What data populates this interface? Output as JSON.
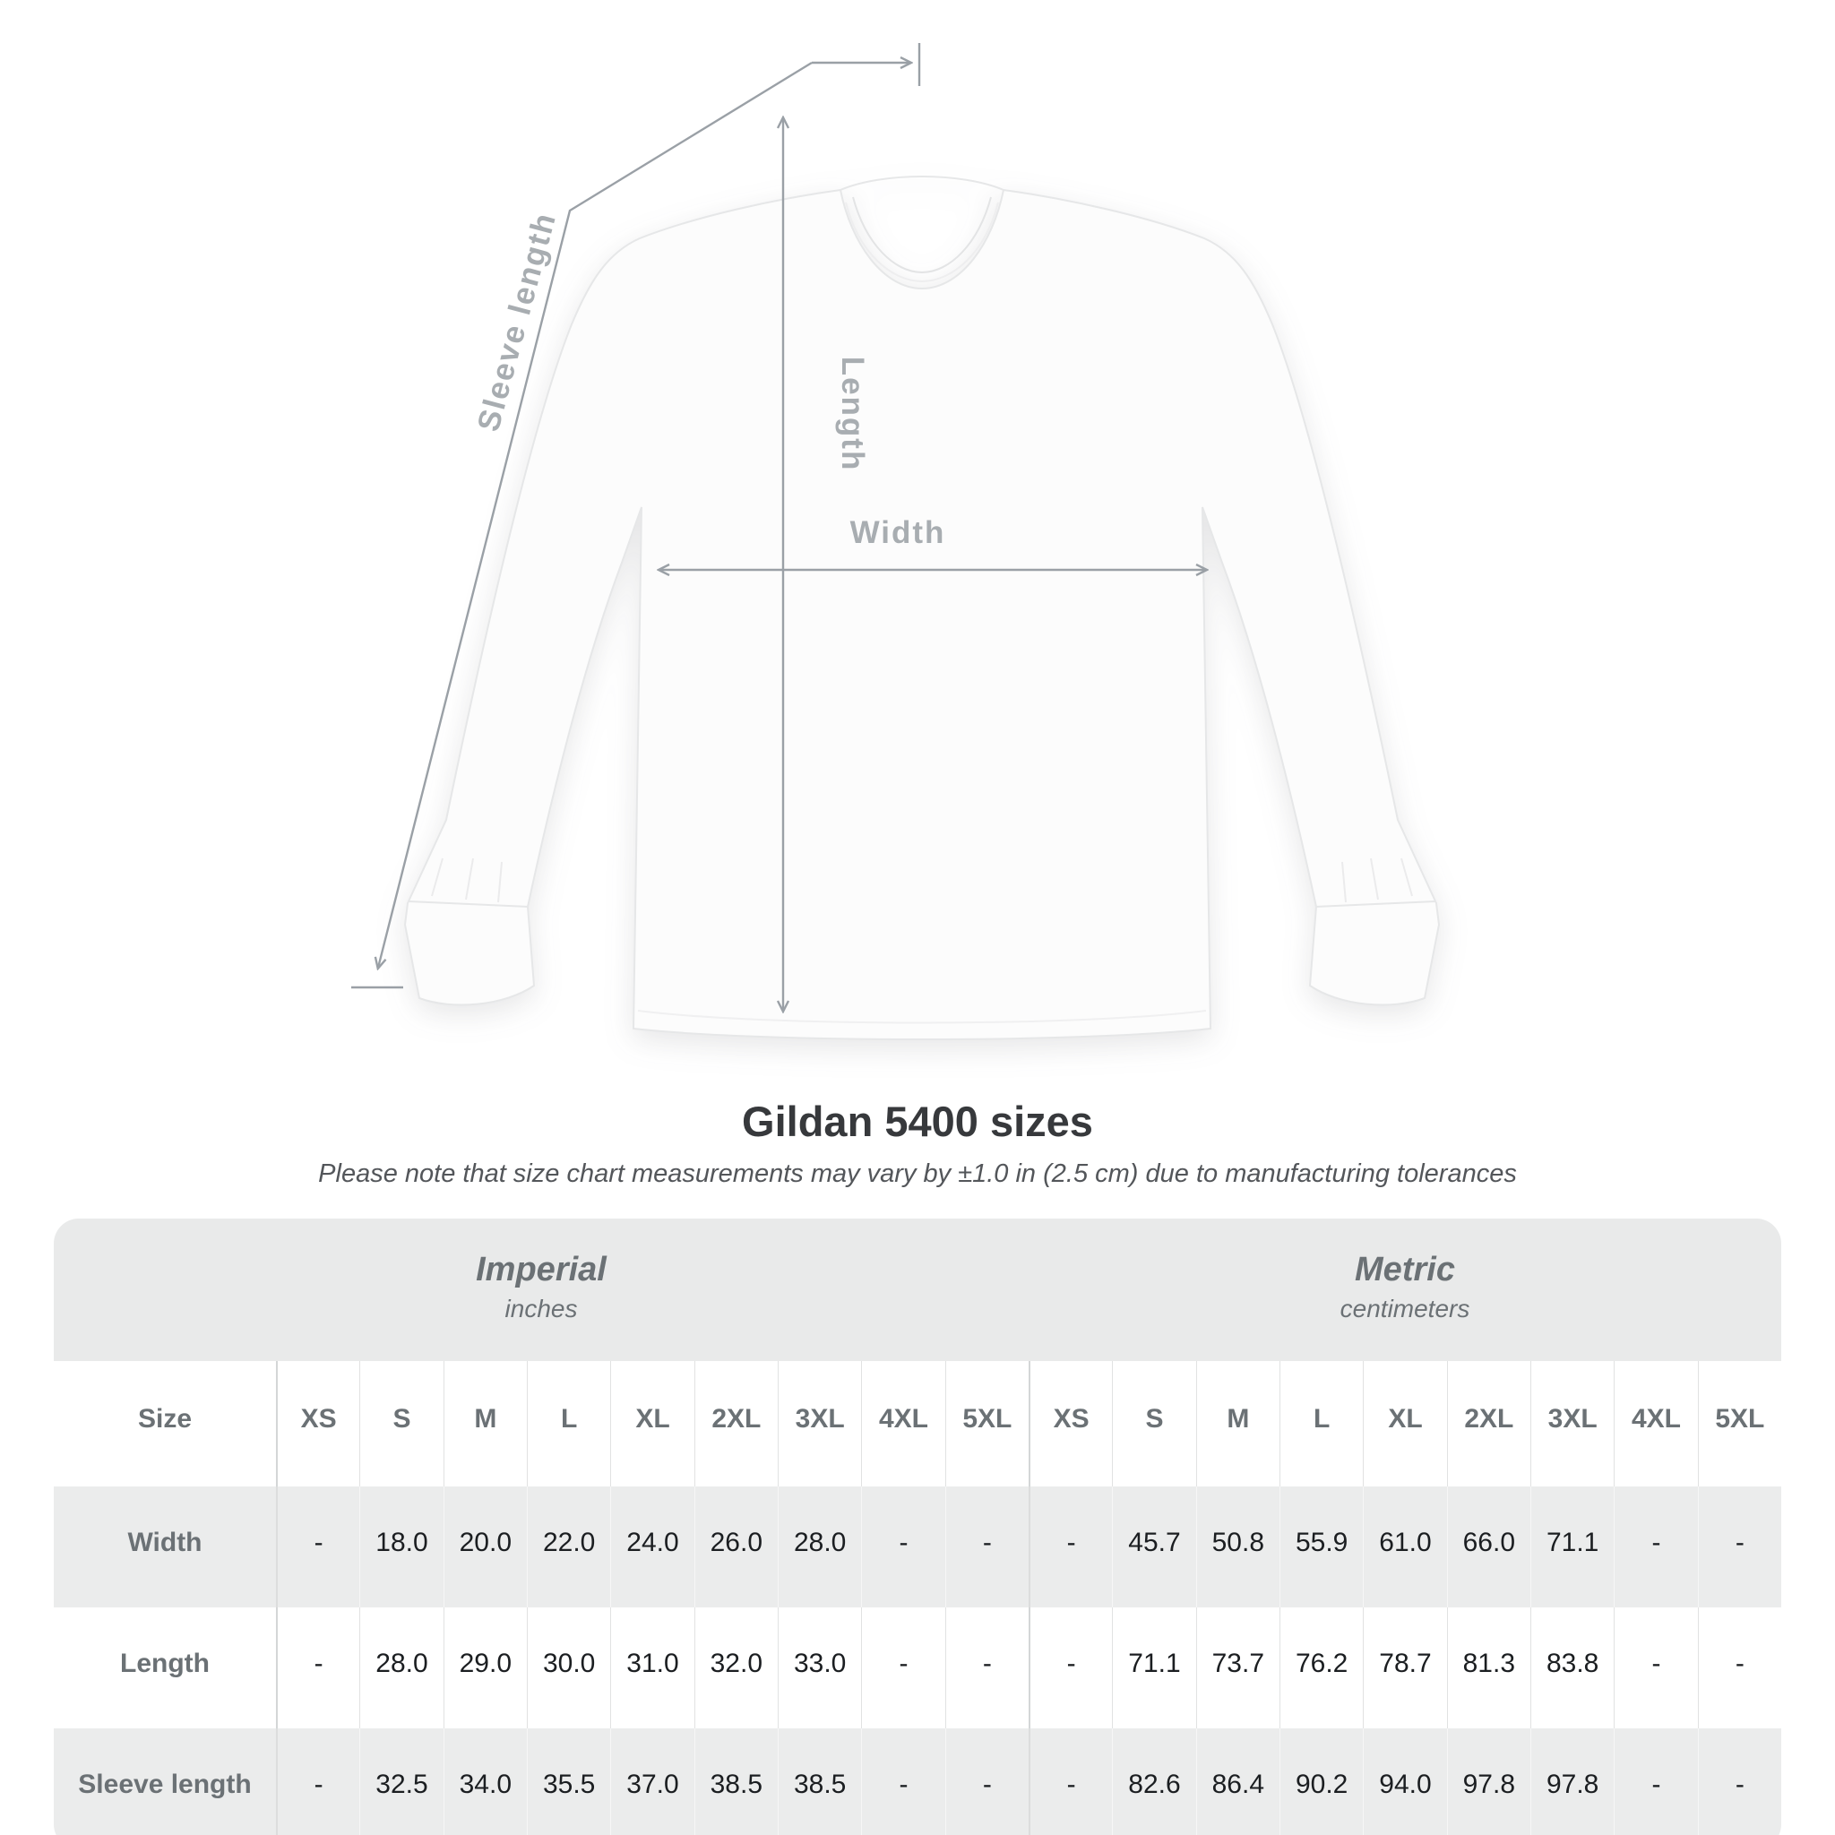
{
  "title": "Gildan 5400 sizes",
  "subtitle": "Please note that size chart measurements may vary by ±1.0 in (2.5 cm) due to manufacturing tolerances",
  "diagram": {
    "labels": {
      "sleeve_length": "Sleeve length",
      "length": "Length",
      "width": "Width"
    }
  },
  "colors": {
    "arrow_gray": "#9aa0a6",
    "dim_label_gray": "#a8adb1",
    "table_band_gray": "#e9eaea",
    "header_text_gray": "#6b7175",
    "value_text": "#1b1e21",
    "title_text": "#37393c"
  },
  "table": {
    "size_header": "Size",
    "unit_groups": [
      {
        "name": "Imperial",
        "unit": "inches"
      },
      {
        "name": "Metric",
        "unit": "centimeters"
      }
    ],
    "sizes": [
      "XS",
      "S",
      "M",
      "L",
      "XL",
      "2XL",
      "3XL",
      "4XL",
      "5XL"
    ],
    "rows": [
      {
        "label": "Width",
        "imperial": [
          "-",
          "18.0",
          "20.0",
          "22.0",
          "24.0",
          "26.0",
          "28.0",
          "-",
          "-"
        ],
        "metric": [
          "-",
          "45.7",
          "50.8",
          "55.9",
          "61.0",
          "66.0",
          "71.1",
          "-",
          "-"
        ]
      },
      {
        "label": "Length",
        "imperial": [
          "-",
          "28.0",
          "29.0",
          "30.0",
          "31.0",
          "32.0",
          "33.0",
          "-",
          "-"
        ],
        "metric": [
          "-",
          "71.1",
          "73.7",
          "76.2",
          "78.7",
          "81.3",
          "83.8",
          "-",
          "-"
        ]
      },
      {
        "label": "Sleeve length",
        "imperial": [
          "-",
          "32.5",
          "34.0",
          "35.5",
          "37.0",
          "38.5",
          "38.5",
          "-",
          "-"
        ],
        "metric": [
          "-",
          "82.6",
          "86.4",
          "90.2",
          "94.0",
          "97.8",
          "97.8",
          "-",
          "-"
        ]
      }
    ]
  },
  "chart_data": {
    "type": "table",
    "title": "Gildan 5400 sizes",
    "columns": [
      "Size",
      "XS",
      "S",
      "M",
      "L",
      "XL",
      "2XL",
      "3XL",
      "4XL",
      "5XL"
    ],
    "units": {
      "imperial": "inches",
      "metric": "centimeters"
    },
    "rows_imperial": [
      {
        "label": "Width",
        "values": [
          null,
          18.0,
          20.0,
          22.0,
          24.0,
          26.0,
          28.0,
          null,
          null
        ]
      },
      {
        "label": "Length",
        "values": [
          null,
          28.0,
          29.0,
          30.0,
          31.0,
          32.0,
          33.0,
          null,
          null
        ]
      },
      {
        "label": "Sleeve length",
        "values": [
          null,
          32.5,
          34.0,
          35.5,
          37.0,
          38.5,
          38.5,
          null,
          null
        ]
      }
    ],
    "rows_metric": [
      {
        "label": "Width",
        "values": [
          null,
          45.7,
          50.8,
          55.9,
          61.0,
          66.0,
          71.1,
          null,
          null
        ]
      },
      {
        "label": "Length",
        "values": [
          null,
          71.1,
          73.7,
          76.2,
          78.7,
          81.3,
          83.8,
          null,
          null
        ]
      },
      {
        "label": "Sleeve length",
        "values": [
          null,
          82.6,
          86.4,
          90.2,
          94.0,
          97.8,
          97.8,
          null,
          null
        ]
      }
    ],
    "tolerance_note": "±1.0 in (2.5 cm)"
  }
}
